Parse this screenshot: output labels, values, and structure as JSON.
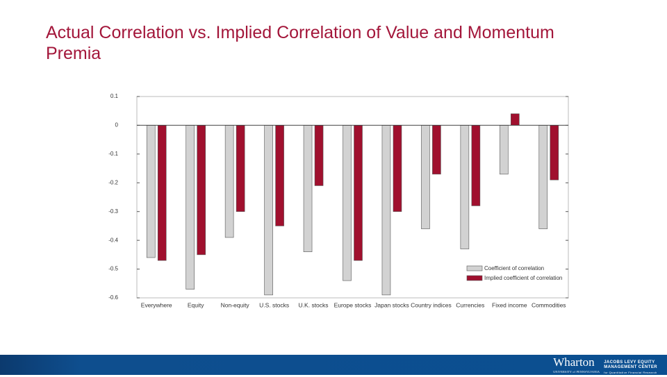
{
  "chart_data": {
    "type": "bar",
    "title": "Actual Correlation vs. Implied Correlation of Value and Momentum Premia",
    "categories": [
      "Everywhere",
      "Equity",
      "Non-equity",
      "U.S. stocks",
      "U.K. stocks",
      "Europe stocks",
      "Japan stocks",
      "Country indices",
      "Currencies",
      "Fixed income",
      "Commodities"
    ],
    "series": [
      {
        "name": "Coefficient of correlation",
        "color": "#d2d2d2",
        "values": [
          -0.46,
          -0.57,
          -0.39,
          -0.59,
          -0.44,
          -0.54,
          -0.59,
          -0.36,
          -0.43,
          -0.17,
          -0.36
        ]
      },
      {
        "name": "Implied coefficient of correlation",
        "color": "#a0102e",
        "values": [
          -0.47,
          -0.45,
          -0.3,
          -0.35,
          -0.21,
          -0.47,
          -0.3,
          -0.17,
          -0.28,
          0.04,
          -0.19
        ]
      }
    ],
    "ylim": [
      -0.6,
      0.1
    ],
    "yticks": [
      0.1,
      0,
      -0.1,
      -0.2,
      -0.3,
      -0.4,
      -0.5,
      -0.6
    ],
    "grid": false,
    "legend": "lower right"
  },
  "footer": {
    "brand": "Wharton",
    "university": "UNIVERSITY of PENNSYLVANIA",
    "center_line1": "JACOBS LEVY EQUITY",
    "center_line2": "MANAGEMENT CENTER",
    "center_sub": "for Quantitative Financial Research"
  }
}
